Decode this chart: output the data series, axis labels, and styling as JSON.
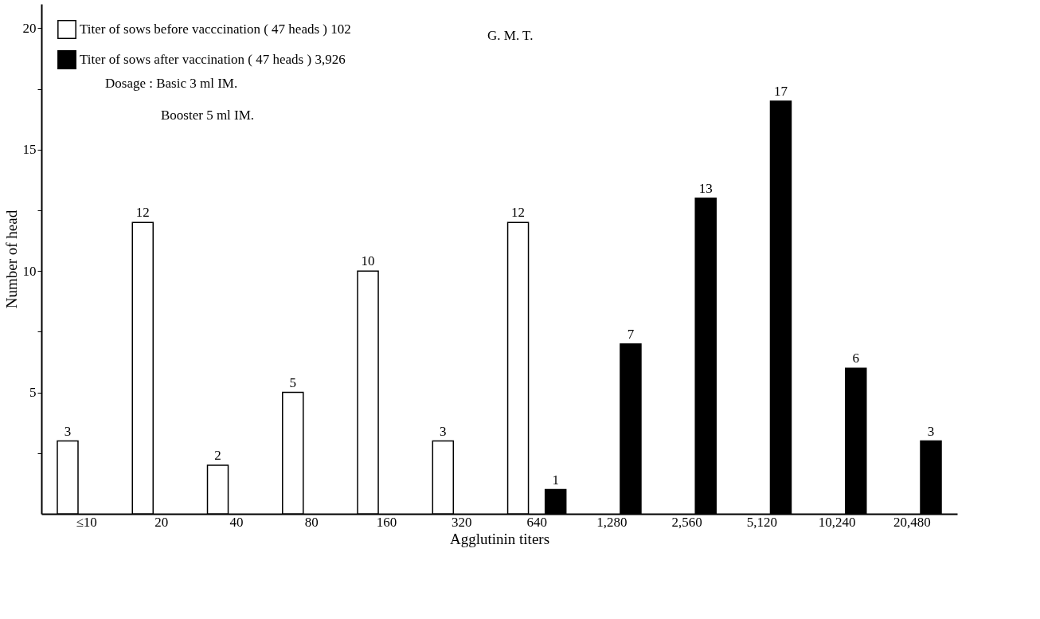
{
  "chart_data": {
    "type": "bar",
    "xlabel": "Agglutinin titers",
    "ylabel": "Number of head",
    "categories": [
      "≤10",
      "20",
      "40",
      "80",
      "160",
      "320",
      "640",
      "1,280",
      "2,560",
      "5,120",
      "10,240",
      "20,480"
    ],
    "series": [
      {
        "name": "Titer of sows before vacccination ( 47 heads )  102",
        "color": "#ffffff",
        "values": [
          3,
          12,
          2,
          5,
          10,
          3,
          12,
          null,
          null,
          null,
          null,
          null
        ]
      },
      {
        "name": "Titer of sows after vaccination ( 47 heads )  3,926",
        "color": "#000000",
        "values": [
          null,
          null,
          null,
          null,
          null,
          null,
          1,
          7,
          13,
          17,
          6,
          3
        ]
      }
    ],
    "ylim": [
      0,
      21
    ],
    "yticks": [
      {
        "value": 2.5,
        "label": null
      },
      5,
      {
        "value": 7.5,
        "label": null
      },
      10,
      {
        "value": 12.5,
        "label": null
      },
      15,
      {
        "value": 17.5,
        "label": null
      },
      20
    ],
    "data_labels": true,
    "grid": false,
    "legend": "top left",
    "annotations": [
      "G. M. T.",
      "Dosage : Basic  3 ml  IM.",
      "Booster  5 ml  IM."
    ]
  }
}
